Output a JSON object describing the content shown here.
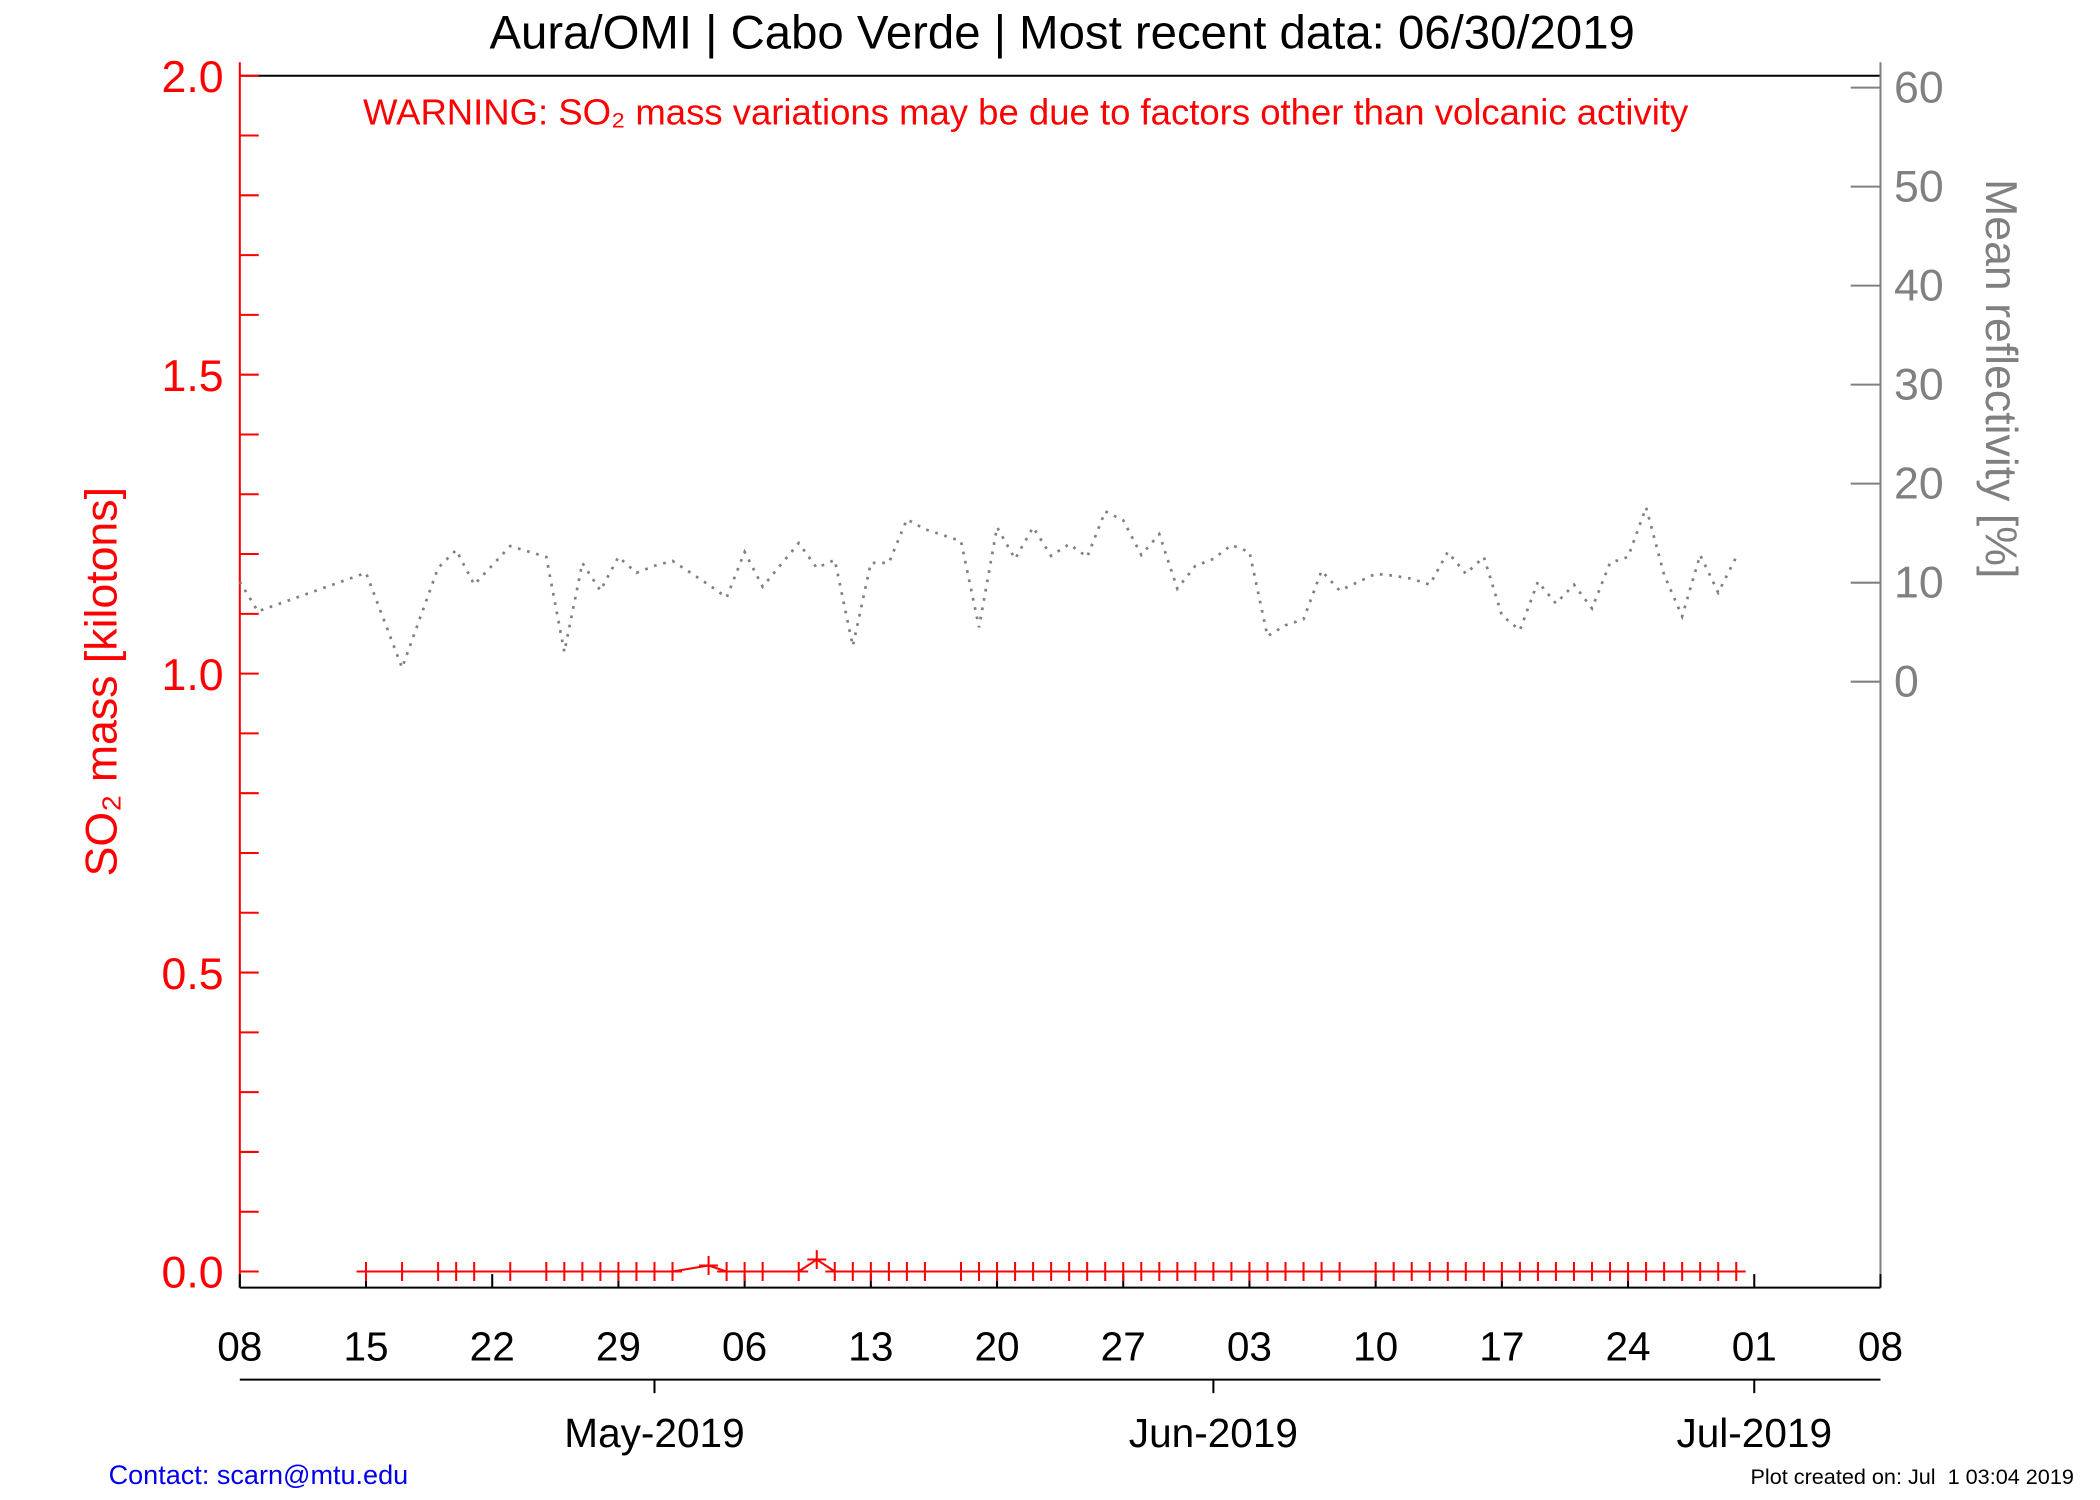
{
  "chart_data": {
    "type": "line",
    "title": "Aura/OMI | Cabo Verde | Most recent data: 06/30/2019",
    "annotation": "WARNING: SO₂ mass variations may be due to factors other than volcanic activity",
    "ylabel": "SO₂ mass [kilotons]",
    "y2label": "Mean reflectivity [%]",
    "contact": "Contact: scarn@mtu.edu",
    "created": "Plot created on: Jul  1 03:04 2019",
    "x": [
      "2019-04-08",
      "2019-04-09",
      "2019-04-15",
      "2019-04-17",
      "2019-04-19",
      "2019-04-20",
      "2019-04-21",
      "2019-04-23",
      "2019-04-25",
      "2019-04-26",
      "2019-04-27",
      "2019-04-28",
      "2019-04-29",
      "2019-04-30",
      "2019-05-01",
      "2019-05-02",
      "2019-05-04",
      "2019-05-05",
      "2019-05-06",
      "2019-05-07",
      "2019-05-09",
      "2019-05-10",
      "2019-05-11",
      "2019-05-12",
      "2019-05-13",
      "2019-05-14",
      "2019-05-15",
      "2019-05-16",
      "2019-05-18",
      "2019-05-19",
      "2019-05-20",
      "2019-05-21",
      "2019-05-22",
      "2019-05-23",
      "2019-05-24",
      "2019-05-25",
      "2019-05-26",
      "2019-05-27",
      "2019-05-28",
      "2019-05-29",
      "2019-05-30",
      "2019-05-31",
      "2019-06-01",
      "2019-06-02",
      "2019-06-03",
      "2019-06-04",
      "2019-06-05",
      "2019-06-06",
      "2019-06-07",
      "2019-06-08",
      "2019-06-10",
      "2019-06-11",
      "2019-06-12",
      "2019-06-13",
      "2019-06-14",
      "2019-06-15",
      "2019-06-16",
      "2019-06-17",
      "2019-06-18",
      "2019-06-19",
      "2019-06-20",
      "2019-06-21",
      "2019-06-22",
      "2019-06-23",
      "2019-06-24",
      "2019-06-25",
      "2019-06-26",
      "2019-06-27",
      "2019-06-28",
      "2019-06-29",
      "2019-06-30"
    ],
    "series": [
      {
        "name": "SO₂ mass",
        "color": "#ff0000",
        "values": [
          null,
          null,
          0,
          0,
          0,
          0,
          0,
          0,
          0,
          0,
          0,
          0,
          0,
          0,
          0,
          0,
          0.01,
          0,
          0,
          0,
          0,
          0.02,
          0,
          0,
          0,
          0,
          0,
          0,
          0,
          0,
          0,
          0,
          0,
          0,
          0,
          0,
          0,
          0,
          0,
          0,
          0,
          0,
          0,
          0,
          0,
          0,
          0,
          0,
          0,
          0,
          0,
          0,
          0,
          0,
          0,
          0,
          0,
          0,
          0,
          0,
          0,
          0,
          0,
          0,
          0,
          0,
          0,
          0,
          0,
          0,
          0
        ]
      },
      {
        "name": "Mean reflectivity",
        "color": "#808080",
        "axis": "y2",
        "values": [
          10.1,
          7.1,
          11.0,
          1.4,
          11.5,
          13.3,
          9.8,
          13.7,
          12.6,
          3.0,
          12.0,
          9.2,
          12.6,
          11.0,
          11.7,
          12.2,
          9.8,
          8.5,
          13.1,
          9.6,
          14.0,
          11.5,
          12.3,
          3.6,
          12.0,
          12.0,
          16.4,
          15.4,
          14.2,
          5.5,
          15.6,
          12.4,
          15.6,
          12.7,
          13.9,
          12.6,
          17.2,
          16.3,
          12.8,
          14.9,
          9.4,
          11.7,
          12.4,
          13.8,
          13.1,
          4.6,
          5.7,
          6.3,
          11.2,
          9.2,
          10.9,
          10.7,
          10.4,
          9.8,
          13.1,
          10.9,
          12.6,
          6.7,
          5.2,
          10.1,
          7.9,
          9.8,
          7.4,
          12.0,
          12.6,
          17.6,
          10.8,
          6.6,
          12.8,
          9.0,
          12.6
        ]
      }
    ],
    "xlim": [
      "2019-04-08",
      "2019-07-08"
    ],
    "xticks": [
      {
        "value": "2019-04-08",
        "label": "08"
      },
      {
        "value": "2019-04-15",
        "label": "15"
      },
      {
        "value": "2019-04-22",
        "label": "22"
      },
      {
        "value": "2019-04-29",
        "label": "29"
      },
      {
        "value": "2019-05-06",
        "label": "06"
      },
      {
        "value": "2019-05-13",
        "label": "13"
      },
      {
        "value": "2019-05-20",
        "label": "20"
      },
      {
        "value": "2019-05-27",
        "label": "27"
      },
      {
        "value": "2019-06-03",
        "label": "03"
      },
      {
        "value": "2019-06-10",
        "label": "10"
      },
      {
        "value": "2019-06-17",
        "label": "17"
      },
      {
        "value": "2019-06-24",
        "label": "24"
      },
      {
        "value": "2019-07-01",
        "label": "01"
      },
      {
        "value": "2019-07-08",
        "label": "08"
      }
    ],
    "monthticks": [
      {
        "value": "2019-05-01",
        "label": "May-2019"
      },
      {
        "value": "2019-06-01",
        "label": "Jun-2019"
      },
      {
        "value": "2019-07-01",
        "label": "Jul-2019"
      }
    ],
    "ylim": [
      -0.027,
      2.0
    ],
    "yticks": [
      {
        "value": 0,
        "label": "0.0"
      },
      0.5,
      {
        "value": 1,
        "label": "1.0"
      },
      1.5,
      {
        "value": 2,
        "label": "2.0"
      }
    ],
    "yminorticks": [
      0.1,
      0.2,
      0.3,
      0.4,
      0.6,
      0.7,
      0.8,
      0.9,
      1.1,
      1.2,
      1.3,
      1.4,
      1.6,
      1.7,
      1.8,
      1.9
    ],
    "y2lim": [
      -61.2,
      61.2
    ],
    "y2ticks": [
      0,
      10,
      20,
      30,
      40,
      50,
      60
    ]
  }
}
